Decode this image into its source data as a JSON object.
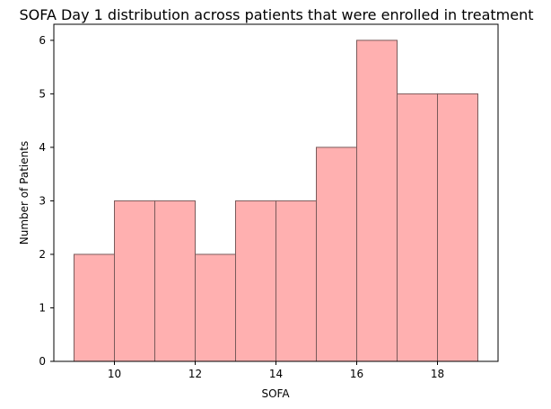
{
  "chart_data": {
    "type": "bar",
    "title": "SOFA Day 1 distribution across patients that were enrolled in treatment",
    "xlabel": "SOFA",
    "ylabel": "Number of Patients",
    "bins": [
      {
        "start": 9,
        "end": 10,
        "value": 2
      },
      {
        "start": 10,
        "end": 11,
        "value": 3
      },
      {
        "start": 11,
        "end": 12,
        "value": 3
      },
      {
        "start": 12,
        "end": 13,
        "value": 2
      },
      {
        "start": 13,
        "end": 14,
        "value": 3
      },
      {
        "start": 14,
        "end": 15,
        "value": 3
      },
      {
        "start": 15,
        "end": 16,
        "value": 4
      },
      {
        "start": 16,
        "end": 17,
        "value": 6
      },
      {
        "start": 17,
        "end": 18,
        "value": 5
      },
      {
        "start": 18,
        "end": 19,
        "value": 5
      }
    ],
    "xlim": [
      8.5,
      19.5
    ],
    "ylim": [
      0,
      6.3
    ],
    "xticks": [
      10,
      12,
      14,
      16,
      18
    ],
    "yticks": [
      0,
      1,
      2,
      3,
      4,
      5,
      6
    ],
    "grid": false,
    "bar_color": "#ffb0b0",
    "edge_color": "#7a5a5a"
  }
}
